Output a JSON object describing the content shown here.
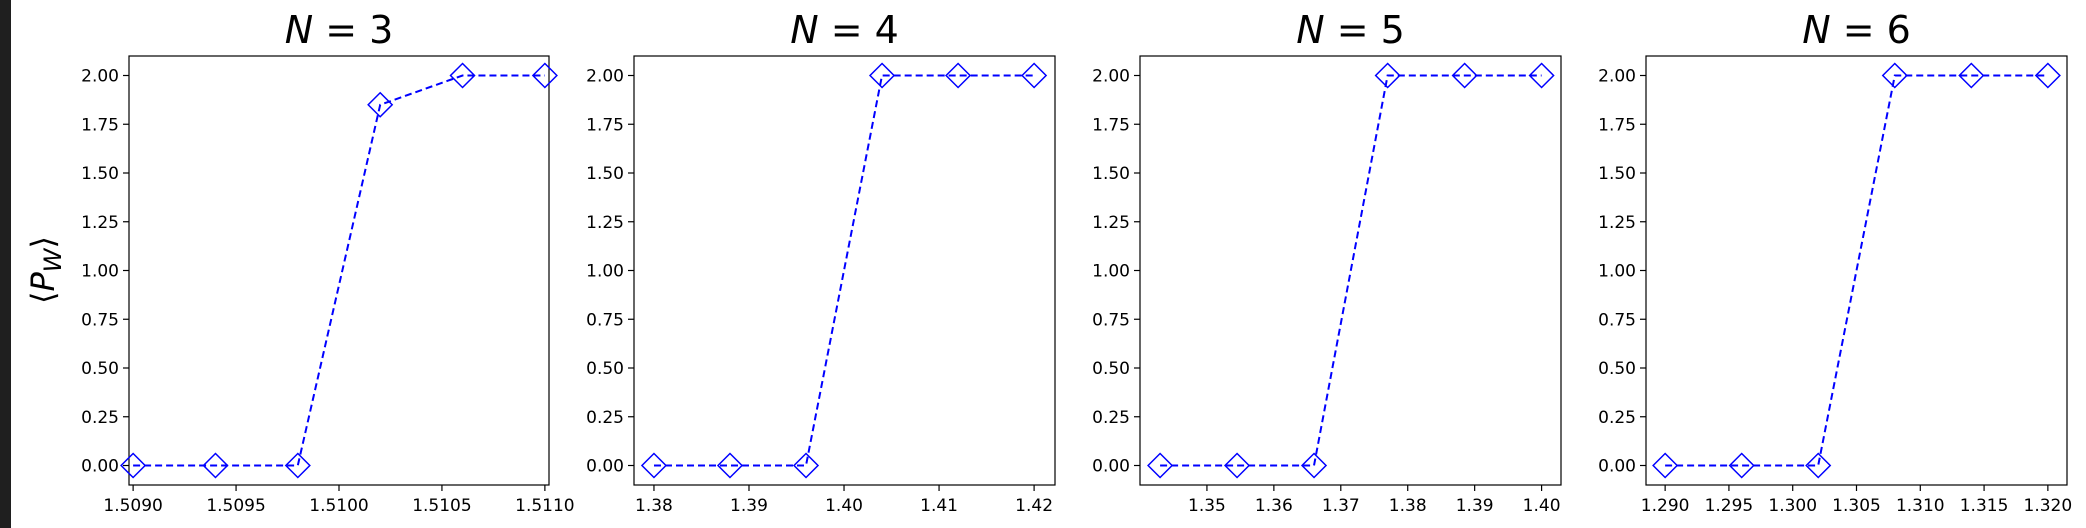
{
  "figure": {
    "ylabel_parts": [
      "⟨",
      "P",
      "W",
      "⟩"
    ]
  },
  "chart_data": [
    {
      "type": "line",
      "title_parts": [
        "N",
        " = 3"
      ],
      "x": [
        1.509,
        1.5094,
        1.5098,
        1.5102,
        1.5106,
        1.511
      ],
      "series": [
        {
          "values": [
            0.0,
            0.0,
            0.0,
            1.85,
            2.0,
            2.0
          ],
          "color": "#0000ff",
          "marker": "diamond",
          "linestyle": "dashed"
        }
      ],
      "xlim": [
        1.50898,
        1.51102
      ],
      "ylim": [
        -0.1,
        2.1
      ],
      "xticks": [
        1.509,
        1.5095,
        1.51,
        1.5105,
        1.511
      ],
      "xtick_labels": [
        "1.5090",
        "1.5095",
        "1.5100",
        "1.5105",
        "1.5110"
      ],
      "yticks": [
        0,
        0.25,
        0.5,
        0.75,
        1.0,
        1.25,
        1.5,
        1.75,
        2.0
      ],
      "ytick_labels": [
        "0.00",
        "0.25",
        "0.50",
        "0.75",
        "1.00",
        "1.25",
        "1.50",
        "1.75",
        "2.00"
      ],
      "grid": false
    },
    {
      "type": "line",
      "title_parts": [
        "N",
        " = 4"
      ],
      "x": [
        1.38,
        1.388,
        1.396,
        1.404,
        1.412,
        1.42
      ],
      "series": [
        {
          "values": [
            0.0,
            0.0,
            0.0,
            2.0,
            2.0,
            2.0
          ],
          "color": "#0000ff",
          "marker": "diamond",
          "linestyle": "dashed"
        }
      ],
      "xlim": [
        1.3779,
        1.4222
      ],
      "ylim": [
        -0.1,
        2.1
      ],
      "xticks": [
        1.38,
        1.39,
        1.4,
        1.41,
        1.42
      ],
      "xtick_labels": [
        "1.38",
        "1.39",
        "1.40",
        "1.41",
        "1.42"
      ],
      "yticks": [
        0,
        0.25,
        0.5,
        0.75,
        1.0,
        1.25,
        1.5,
        1.75,
        2.0
      ],
      "ytick_labels": [
        "0.00",
        "0.25",
        "0.50",
        "0.75",
        "1.00",
        "1.25",
        "1.50",
        "1.75",
        "2.00"
      ],
      "grid": false
    },
    {
      "type": "line",
      "title_parts": [
        "N",
        " = 5"
      ],
      "x": [
        1.343,
        1.3545,
        1.366,
        1.377,
        1.3885,
        1.4
      ],
      "series": [
        {
          "values": [
            0.0,
            0.0,
            0.0,
            2.0,
            2.0,
            2.0
          ],
          "color": "#0000ff",
          "marker": "diamond",
          "linestyle": "dashed"
        }
      ],
      "xlim": [
        1.34,
        1.4029
      ],
      "ylim": [
        -0.1,
        2.1
      ],
      "xticks": [
        1.35,
        1.36,
        1.37,
        1.38,
        1.39,
        1.4
      ],
      "xtick_labels": [
        "1.35",
        "1.36",
        "1.37",
        "1.38",
        "1.39",
        "1.40"
      ],
      "yticks": [
        0,
        0.25,
        0.5,
        0.75,
        1.0,
        1.25,
        1.5,
        1.75,
        2.0
      ],
      "ytick_labels": [
        "0.00",
        "0.25",
        "0.50",
        "0.75",
        "1.00",
        "1.25",
        "1.50",
        "1.75",
        "2.00"
      ],
      "grid": false
    },
    {
      "type": "line",
      "title_parts": [
        "N",
        " = 6"
      ],
      "x": [
        1.29,
        1.296,
        1.302,
        1.308,
        1.314,
        1.32
      ],
      "series": [
        {
          "values": [
            0.0,
            0.0,
            0.0,
            2.0,
            2.0,
            2.0
          ],
          "color": "#0000ff",
          "marker": "diamond",
          "linestyle": "dashed"
        }
      ],
      "xlim": [
        1.2885,
        1.3215
      ],
      "ylim": [
        -0.1,
        2.1
      ],
      "xticks": [
        1.29,
        1.295,
        1.3,
        1.305,
        1.31,
        1.315,
        1.32
      ],
      "xtick_labels": [
        "1.290",
        "1.295",
        "1.300",
        "1.305",
        "1.310",
        "1.315",
        "1.320"
      ],
      "yticks": [
        0,
        0.25,
        0.5,
        0.75,
        1.0,
        1.25,
        1.5,
        1.75,
        2.0
      ],
      "ytick_labels": [
        "0.00",
        "0.25",
        "0.50",
        "0.75",
        "1.00",
        "1.25",
        "1.50",
        "1.75",
        "2.00"
      ],
      "grid": false
    }
  ]
}
